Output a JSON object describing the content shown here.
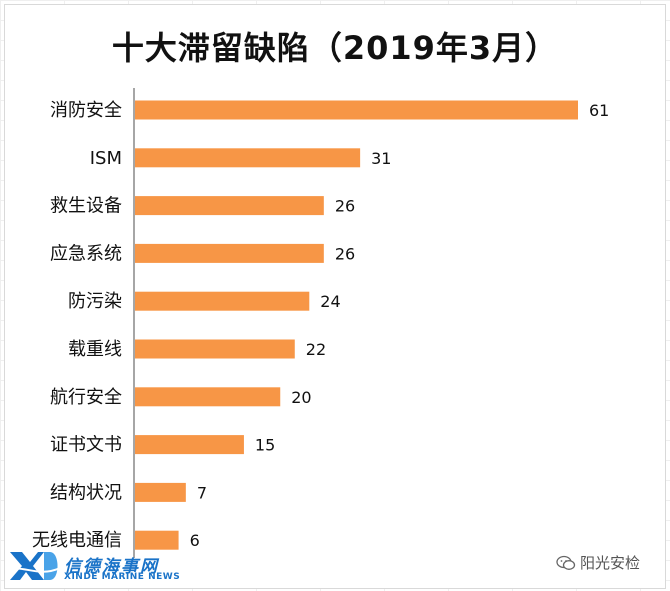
{
  "chart_data": {
    "type": "bar",
    "orientation": "horizontal",
    "title": "十大滞留缺陷（2019年3月）",
    "categories": [
      "消防安全",
      "ISM",
      "救生设备",
      "应急系统",
      "防污染",
      "载重线",
      "航行安全",
      "证书文书",
      "结构状况",
      "无线电通信"
    ],
    "values": [
      61,
      31,
      26,
      26,
      24,
      22,
      20,
      15,
      7,
      6
    ],
    "value_labels": [
      "61",
      "31",
      "26",
      "26",
      "24",
      "22",
      "20",
      "15",
      "7",
      "6"
    ],
    "bar_color": "#F79646",
    "grid": false,
    "legend": "none"
  },
  "watermark_left": {
    "logo_text": "XD",
    "cn": "信德海事网",
    "en": "XINDE MARINE NEWS",
    "color": "#1a73c8"
  },
  "watermark_right": {
    "icon": "wechat-icon",
    "text": "阳光安检"
  }
}
